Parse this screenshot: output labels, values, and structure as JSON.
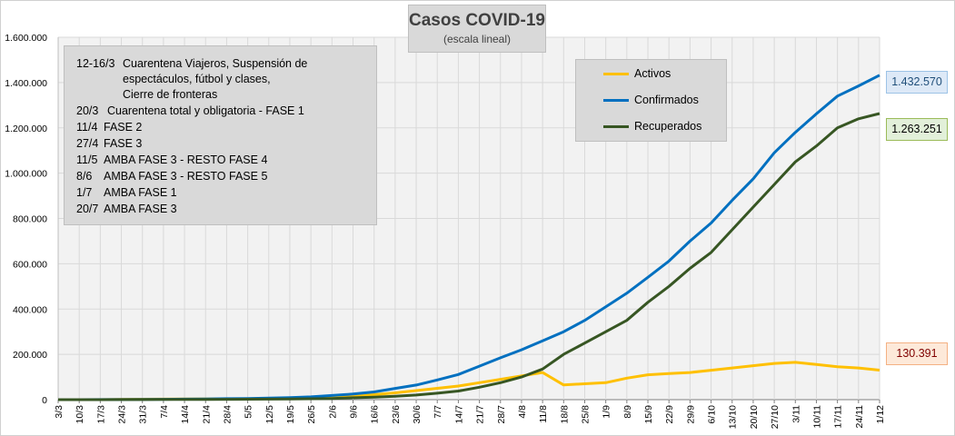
{
  "chart_data": {
    "type": "line",
    "title": "Casos COVID-19",
    "subtitle": "(escala lineal)",
    "ylim": [
      0,
      1600000
    ],
    "yticks": [
      "0",
      "200.000",
      "400.000",
      "600.000",
      "800.000",
      "1.000.000",
      "1.200.000",
      "1.400.000",
      "1.600.000"
    ],
    "ytick_values": [
      0,
      200000,
      400000,
      600000,
      800000,
      1000000,
      1200000,
      1400000,
      1600000
    ],
    "xtick_labels": [
      "3/3",
      "10/3",
      "17/3",
      "24/3",
      "31/3",
      "7/4",
      "14/4",
      "21/4",
      "28/4",
      "5/5",
      "12/5",
      "19/5",
      "26/5",
      "2/6",
      "9/6",
      "16/6",
      "23/6",
      "30/6",
      "7/7",
      "14/7",
      "21/7",
      "28/7",
      "4/8",
      "11/8",
      "18/8",
      "25/8",
      "1/9",
      "8/9",
      "15/9",
      "22/9",
      "29/9",
      "6/10",
      "13/10",
      "20/10",
      "27/10",
      "3/11",
      "10/11",
      "17/11",
      "24/11",
      "1/12"
    ],
    "grid": true,
    "series": [
      {
        "name": "Activos",
        "color": "#ffc000",
        "values": [
          0,
          0,
          200,
          1000,
          2000,
          2500,
          3000,
          3500,
          3800,
          4000,
          5000,
          7000,
          9000,
          12000,
          16000,
          22000,
          30000,
          40000,
          50000,
          60000,
          75000,
          90000,
          105000,
          120000,
          65000,
          70000,
          75000,
          95000,
          110000,
          115000,
          120000,
          130000,
          140000,
          150000,
          160000,
          165000,
          155000,
          145000,
          140000,
          130391
        ]
      },
      {
        "name": "Confirmados",
        "color": "#0070c0",
        "values": [
          0,
          0,
          300,
          500,
          1000,
          1500,
          2400,
          3300,
          4300,
          5400,
          6900,
          8800,
          12600,
          18300,
          24800,
          34000,
          49800,
          64500,
          87000,
          111000,
          148000,
          185000,
          220000,
          260000,
          300000,
          350000,
          410000,
          470000,
          540000,
          612000,
          700000,
          780000,
          880000,
          975000,
          1090000,
          1180000,
          1262000,
          1340000,
          1385000,
          1432570
        ]
      },
      {
        "name": "Recuperados",
        "color": "#375623",
        "values": [
          0,
          0,
          100,
          300,
          300,
          700,
          900,
          1100,
          1500,
          1900,
          2300,
          3300,
          4000,
          5300,
          8300,
          11300,
          15300,
          20300,
          28400,
          38000,
          55000,
          75000,
          100000,
          135000,
          200000,
          250000,
          300000,
          350000,
          430000,
          500000,
          580000,
          650000,
          750000,
          850000,
          950000,
          1050000,
          1120000,
          1200000,
          1240000,
          1263251
        ]
      }
    ],
    "end_labels": {
      "confirmados": "1.432.570",
      "recuperados": "1.263.251",
      "activos": "130.391"
    },
    "legend": [
      "Activos",
      "Confirmados",
      "Recuperados"
    ],
    "legend_position": "top-right",
    "annotations": {
      "lines": [
        {
          "date": "12-16/3",
          "text": "Cuarentena Viajeros, Suspensión de"
        },
        {
          "date": "",
          "text": "espectáculos, fútbol y clases,"
        },
        {
          "date": "",
          "text": "Cierre de fronteras"
        },
        {
          "date": "20/3",
          "text": "Cuarentena total y obligatoria - FASE 1"
        },
        {
          "date": "11/4",
          "text": "FASE 2"
        },
        {
          "date": "27/4",
          "text": "FASE 3"
        },
        {
          "date": "11/5",
          "text": "AMBA FASE 3 - RESTO FASE 4"
        },
        {
          "date": "8/6",
          "text": "AMBA FASE 3 - RESTO FASE 5"
        },
        {
          "date": "1/7",
          "text": "AMBA FASE 1"
        },
        {
          "date": "20/7",
          "text": "AMBA FASE 3"
        }
      ]
    }
  }
}
